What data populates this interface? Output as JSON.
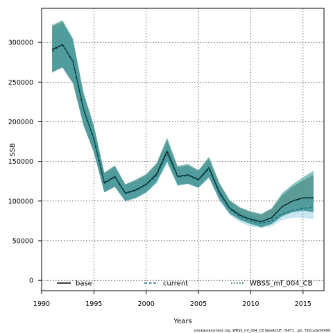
{
  "chart_data": {
    "type": "line",
    "title": "",
    "xlabel": "Years",
    "ylabel": "SSB",
    "xlim": [
      1990,
      2017
    ],
    "ylim": [
      -13000,
      343000
    ],
    "xticks": [
      1990,
      1995,
      2000,
      2005,
      2010,
      2015
    ],
    "yticks": [
      0,
      50000,
      100000,
      150000,
      200000,
      250000,
      300000
    ],
    "grid": true,
    "legend_position": "bottom",
    "colors": {
      "band_base": "#8c8c8c",
      "band_current": "#5fb8d8",
      "band_wbss": "#1f8f86",
      "line_base": "#000000",
      "line_current": "#1a6a80",
      "line_wbss": "#0c5e58"
    },
    "x": [
      1991,
      1992,
      1993,
      1994,
      1995,
      1996,
      1997,
      1998,
      1999,
      2000,
      2001,
      2002,
      2003,
      2004,
      2005,
      2006,
      2007,
      2008,
      2009,
      2010,
      2011,
      2012,
      2013,
      2014,
      2015,
      2016
    ],
    "series": [
      {
        "name": "base",
        "style": "solid",
        "values": [
          291000,
          297000,
          276000,
          216000,
          178000,
          123000,
          131000,
          110000,
          114000,
          121000,
          134000,
          163000,
          131000,
          133000,
          127000,
          142000,
          111000,
          91000,
          82000,
          77000,
          74000,
          79000,
          93000,
          100000,
          104000,
          104000
        ],
        "lower": [
          263000,
          268000,
          248000,
          196000,
          161000,
          111000,
          118000,
          100000,
          104000,
          111000,
          124000,
          150000,
          120000,
          122000,
          117000,
          130000,
          102000,
          84000,
          76000,
          71000,
          67000,
          71000,
          81000,
          86000,
          88000,
          86000
        ],
        "upper": [
          320000,
          326000,
          303000,
          236000,
          194000,
          135000,
          144000,
          121000,
          126000,
          133000,
          147000,
          177000,
          143000,
          145000,
          138000,
          154000,
          122000,
          100000,
          91000,
          86000,
          83000,
          90000,
          107000,
          118000,
          126000,
          133000
        ]
      },
      {
        "name": "current",
        "style": "dashed",
        "values": [
          288000,
          297000,
          275000,
          215000,
          178000,
          122000,
          130000,
          109000,
          113000,
          120000,
          132000,
          160000,
          130000,
          132000,
          126000,
          140000,
          109000,
          90000,
          80000,
          75000,
          72000,
          75000,
          84000,
          88000,
          91000,
          92000
        ],
        "lower": [
          261000,
          270000,
          249000,
          195000,
          162000,
          111000,
          118000,
          99000,
          103000,
          110000,
          122000,
          147000,
          119000,
          121000,
          116000,
          129000,
          100000,
          82000,
          73000,
          68000,
          66000,
          68000,
          76000,
          79000,
          79000,
          77000
        ],
        "upper": [
          315000,
          324000,
          301000,
          235000,
          194000,
          133000,
          142000,
          119000,
          123000,
          130000,
          142000,
          173000,
          141000,
          143000,
          136000,
          151000,
          118000,
          98000,
          87000,
          82000,
          78000,
          82000,
          92000,
          97000,
          103000,
          107000
        ]
      },
      {
        "name": "WBSS_mf_004_CB",
        "style": "dotted",
        "values": [
          290000,
          298000,
          276000,
          216000,
          178000,
          123000,
          131000,
          110000,
          114000,
          121000,
          134000,
          163000,
          131000,
          133000,
          127000,
          142000,
          111000,
          91000,
          82000,
          77000,
          74000,
          79000,
          93000,
          100000,
          104000,
          104000
        ],
        "lower": [
          262000,
          269000,
          249000,
          196000,
          161000,
          111000,
          118000,
          100000,
          104000,
          111000,
          124000,
          150000,
          120000,
          122000,
          117000,
          130000,
          102000,
          84000,
          76000,
          71000,
          67000,
          71000,
          81000,
          86000,
          88000,
          86000
        ],
        "upper": [
          322000,
          328000,
          305000,
          237000,
          195000,
          136000,
          145000,
          121000,
          127000,
          134000,
          148000,
          180000,
          144000,
          147000,
          139000,
          156000,
          123000,
          101000,
          92000,
          87000,
          84000,
          91000,
          110000,
          121000,
          130000,
          138000
        ]
      }
    ],
    "footnote": "stockassessment.org, WBSS_mf_004_CB fakeACDF, r9471 , git: 792ca3e56499"
  }
}
